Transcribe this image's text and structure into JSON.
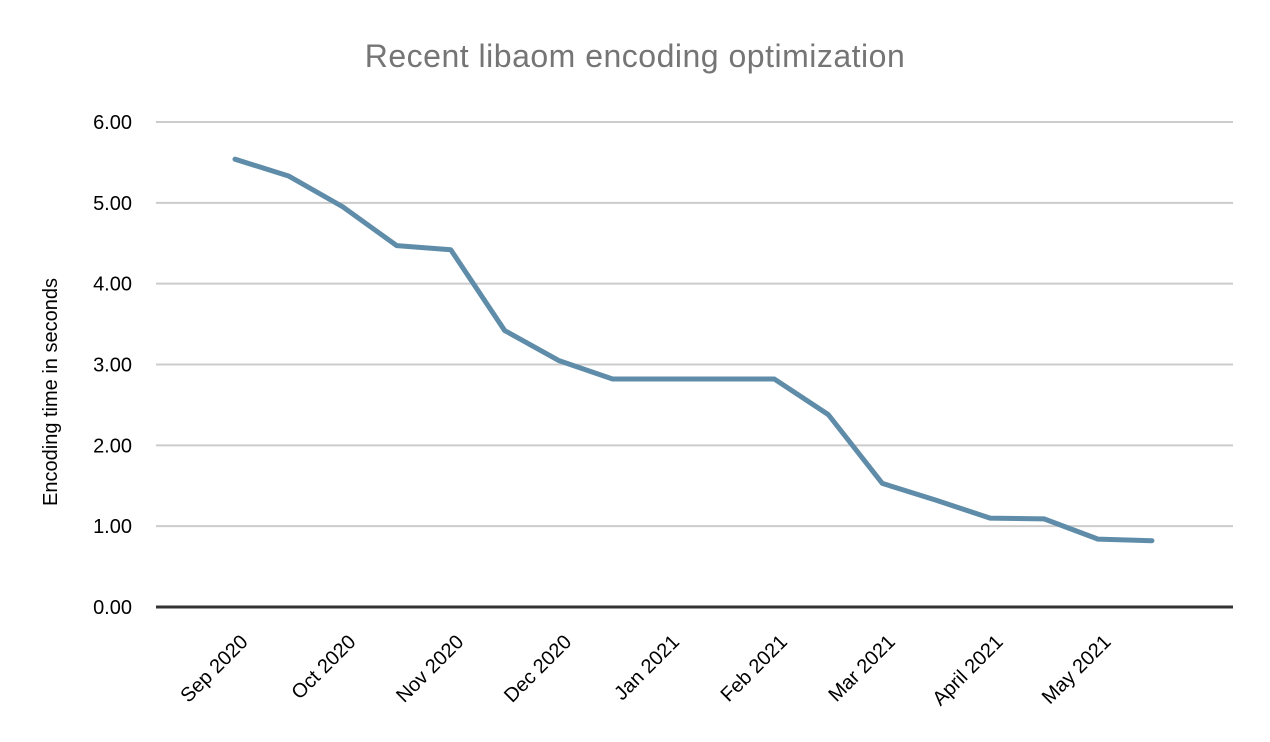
{
  "chart_data": {
    "type": "line",
    "title": "Recent libaom encoding optimization",
    "xlabel": "",
    "ylabel": "Encoding time in seconds",
    "ylim": [
      0,
      6
    ],
    "ytick_step": 1,
    "ytick_decimals": 2,
    "grid": true,
    "legend": "none",
    "x_tick_labels": [
      "Sep 2020",
      "Oct 2020",
      "Nov 2020",
      "Dec 2020",
      "Jan 2021",
      "Feb 2021",
      "Mar 2021",
      "April 2021",
      "May 2021"
    ],
    "x_unit": "months since Sep 2020, sampled semi-monthly",
    "series": [
      {
        "name": "Encoding time in seconds",
        "color": "#5f8ca8",
        "x": [
          0,
          0.5,
          1,
          1.5,
          2,
          2.5,
          3,
          3.5,
          4,
          4.5,
          5,
          5.5,
          6,
          6.5,
          7,
          7.5,
          8,
          8.5
        ],
        "values": [
          5.54,
          5.33,
          4.95,
          4.47,
          4.42,
          3.42,
          3.05,
          2.82,
          2.82,
          2.82,
          2.82,
          2.38,
          1.53,
          1.32,
          1.1,
          1.09,
          0.84,
          0.82
        ]
      }
    ],
    "colors": {
      "title": "#757575",
      "axis_line": "#333333",
      "gridline": "#cccccc",
      "tick_label": "#000000"
    }
  }
}
